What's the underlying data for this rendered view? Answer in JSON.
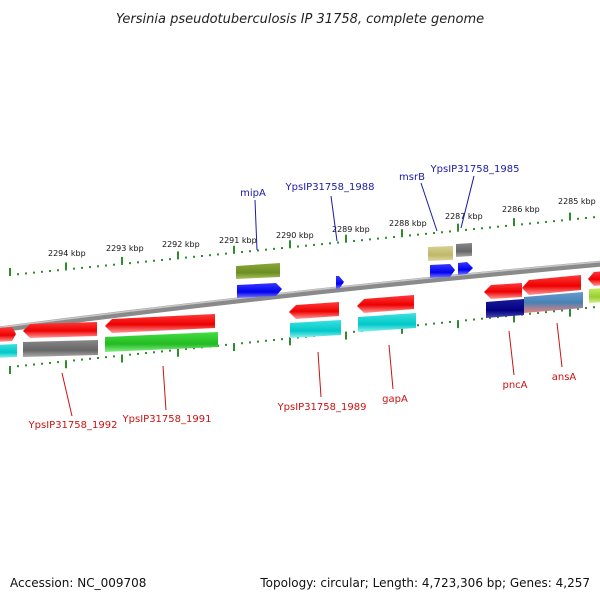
{
  "title": "Yersinia pseudotuberculosis IP 31758, complete genome",
  "footer": {
    "accession": "Accession: NC_009708",
    "summary": "Topology: circular; Length: 4,723,306 bp; Genes: 4,257"
  },
  "colors": {
    "forward_label": "#1a1aaa",
    "reverse_label": "#cc1111",
    "ticks": "#2e8b2e",
    "backbone": "#888888"
  },
  "kbp_labels": [
    "2294 kbp",
    "2293 kbp",
    "2292 kbp",
    "2291 kbp",
    "2290 kbp",
    "2289 kbp",
    "2288 kbp",
    "2287 kbp",
    "2286 kbp",
    "2285 kbp"
  ],
  "gene_labels": {
    "mipA": "mipA",
    "YpsIP31758_1988": "YpsIP31758_1988",
    "msrB": "msrB",
    "YpsIP31758_1985": "YpsIP31758_1985",
    "YpsIP31758_1992": "YpsIP31758_1992",
    "YpsIP31758_1991": "YpsIP31758_1991",
    "YpsIP31758_1989": "YpsIP31758_1989",
    "gapA": "gapA",
    "pncA": "pncA",
    "ansA": "ansA"
  }
}
